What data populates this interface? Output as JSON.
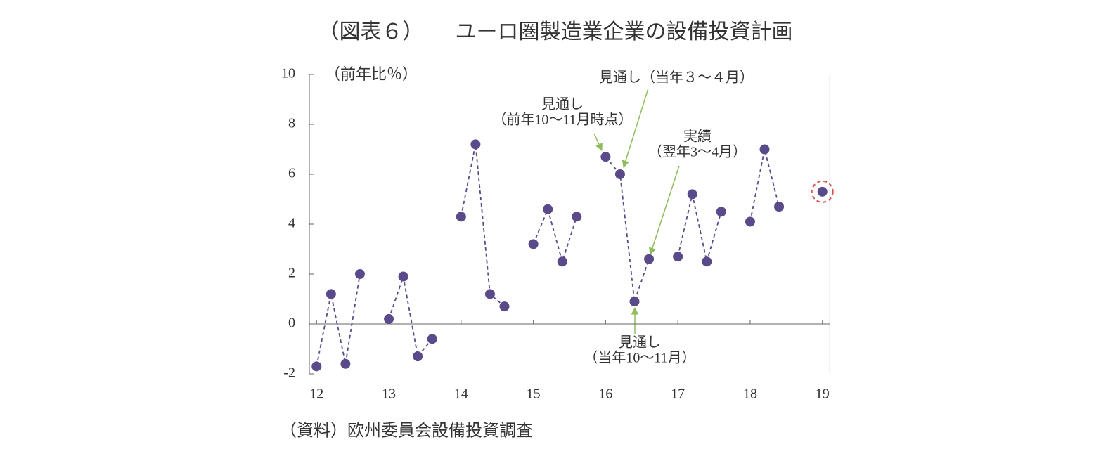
{
  "chart_data": {
    "type": "line",
    "title": "（図表６）　　ユーロ圏製造業企業の設備投資計画",
    "y_label": "（前年比％）",
    "source": "（資料）欧州委員会設備投資調査",
    "xlim": [
      11.9,
      19.1
    ],
    "xticks": [
      12,
      13,
      14,
      15,
      16,
      17,
      18,
      19
    ],
    "ylim": [
      -2,
      10
    ],
    "yticks": [
      -2,
      0,
      2,
      4,
      6,
      8,
      10
    ],
    "series": [
      {
        "color": "#5b4a8a",
        "x": [
          12,
          12.2,
          12.4,
          12.6
        ],
        "values": [
          -1.7,
          1.2,
          -1.6,
          2.0
        ]
      },
      {
        "color": "#5b4a8a",
        "x": [
          13,
          13.2,
          13.4,
          13.6
        ],
        "values": [
          0.2,
          1.9,
          -1.3,
          -0.6
        ]
      },
      {
        "color": "#5b4a8a",
        "x": [
          14,
          14.2,
          14.4,
          14.6
        ],
        "values": [
          4.3,
          7.2,
          1.2,
          0.7
        ]
      },
      {
        "color": "#5b4a8a",
        "x": [
          15,
          15.2,
          15.4,
          15.6
        ],
        "values": [
          3.2,
          4.6,
          2.5,
          4.3
        ]
      },
      {
        "color": "#5b4a8a",
        "x": [
          16,
          16.2,
          16.4,
          16.6
        ],
        "values": [
          6.7,
          6.0,
          0.9,
          2.6
        ]
      },
      {
        "color": "#5b4a8a",
        "x": [
          17,
          17.2,
          17.4,
          17.6
        ],
        "values": [
          2.7,
          5.2,
          2.5,
          4.5
        ]
      },
      {
        "color": "#5b4a8a",
        "x": [
          18,
          18.2,
          18.4
        ],
        "values": [
          4.1,
          7.0,
          4.7
        ]
      },
      {
        "color": "#5b4a8a",
        "x": [
          19
        ],
        "values": [
          5.3
        ],
        "highlight": true
      }
    ],
    "annotations": [
      {
        "lines": [
          "見通し（当年３〜４月）"
        ]
      },
      {
        "lines": [
          "見通し",
          "（前年10〜11月時点）"
        ]
      },
      {
        "lines": [
          "実績",
          "（翌年3〜4月）"
        ]
      },
      {
        "lines": [
          "見通し",
          "（当年10〜11月）"
        ]
      }
    ]
  }
}
